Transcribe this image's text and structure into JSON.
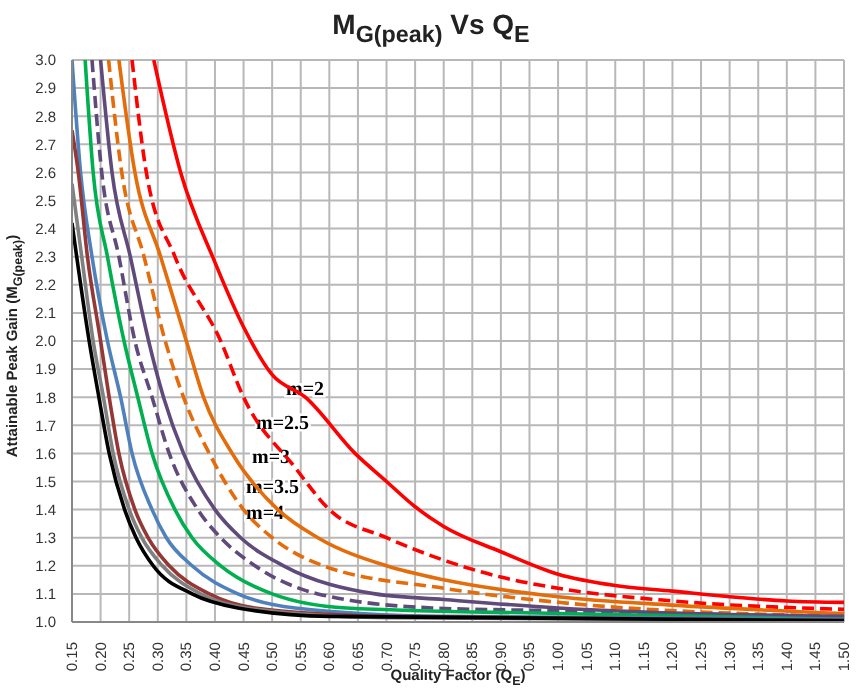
{
  "chart_data": {
    "type": "line",
    "title": "M$_{G(peak)}$ Vs Q$_{E}$",
    "xlabel": "Quality Factor (Q$_{E}$)",
    "ylabel": "Attainable Peak Gain (M$_{G(peak)}$)",
    "xlim": [
      0.15,
      1.5
    ],
    "ylim": [
      1.0,
      3.0
    ],
    "xticks": [
      {
        "value": 0.15,
        "label": "0.15"
      },
      {
        "value": 0.2,
        "label": "0.20"
      },
      {
        "value": 0.25,
        "label": "0.25"
      },
      {
        "value": 0.3,
        "label": "0.30"
      },
      {
        "value": 0.35,
        "label": "0.35"
      },
      {
        "value": 0.4,
        "label": "0.40"
      },
      {
        "value": 0.45,
        "label": "0.45"
      },
      {
        "value": 0.5,
        "label": "0.50"
      },
      {
        "value": 0.55,
        "label": "0.55"
      },
      {
        "value": 0.6,
        "label": "0.60"
      },
      {
        "value": 0.65,
        "label": "0.65"
      },
      {
        "value": 0.7,
        "label": "0.70"
      },
      {
        "value": 0.75,
        "label": "0.75"
      },
      {
        "value": 0.8,
        "label": "0.80"
      },
      {
        "value": 0.85,
        "label": "0.85"
      },
      {
        "value": 0.9,
        "label": "0.90"
      },
      {
        "value": 0.95,
        "label": "0.95"
      },
      {
        "value": 1.0,
        "label": "1.00"
      },
      {
        "value": 1.05,
        "label": "1.05"
      },
      {
        "value": 1.1,
        "label": "1.10"
      },
      {
        "value": 1.15,
        "label": "1.15"
      },
      {
        "value": 1.2,
        "label": "1.20"
      },
      {
        "value": 1.25,
        "label": "1.25"
      },
      {
        "value": 1.3,
        "label": "1.30"
      },
      {
        "value": 1.35,
        "label": "1.35"
      },
      {
        "value": 1.4,
        "label": "1.40"
      },
      {
        "value": 1.45,
        "label": "1.45"
      },
      {
        "value": 1.5,
        "label": "1.50"
      }
    ],
    "yticks": [
      {
        "value": 1.0,
        "label": "1.0"
      },
      1.1,
      1.2,
      1.3,
      1.4,
      1.5,
      1.6,
      1.7,
      1.8,
      1.9,
      {
        "value": 2.0,
        "label": "2.0"
      },
      2.1,
      2.2,
      2.3,
      2.4,
      2.5,
      2.6,
      2.7,
      2.8,
      2.9,
      {
        "value": 3.0,
        "label": "3.0"
      }
    ],
    "grid": true,
    "marker": "none",
    "series": [
      {
        "color": "#ff0000",
        "line_style": "solid",
        "x": [
          0.293,
          0.34,
          0.4,
          0.45,
          0.5,
          0.558,
          0.645,
          0.7,
          0.75,
          0.8,
          0.9,
          1.0,
          1.1,
          1.2,
          1.3,
          1.4,
          1.5
        ],
        "values": [
          3.0,
          2.6,
          2.28,
          2.05,
          1.88,
          1.8,
          1.6,
          1.5,
          1.41,
          1.34,
          1.25,
          1.17,
          1.13,
          1.11,
          1.09,
          1.075,
          1.07
        ]
      },
      {
        "color": "#ff0000",
        "line_style": "dashed",
        "x": [
          0.255,
          0.28,
          0.33,
          0.41,
          0.45,
          0.54,
          0.6,
          0.7,
          0.8,
          0.9,
          1.0,
          1.2,
          1.5
        ],
        "values": [
          3.0,
          2.6,
          2.3,
          2.0,
          1.8,
          1.55,
          1.4,
          1.3,
          1.22,
          1.16,
          1.12,
          1.075,
          1.045
        ]
      },
      {
        "color": "#e46c0a",
        "line_style": "solid",
        "x": [
          0.232,
          0.26,
          0.305,
          0.35,
          0.38,
          0.43,
          0.51,
          0.58,
          0.7,
          0.8,
          1.0,
          1.2,
          1.5
        ],
        "values": [
          3.0,
          2.6,
          2.3,
          2.0,
          1.8,
          1.6,
          1.4,
          1.3,
          1.2,
          1.15,
          1.09,
          1.06,
          1.03
        ]
      },
      {
        "color": "#e46c0a",
        "line_style": "dashed",
        "x": [
          0.214,
          0.237,
          0.276,
          0.313,
          0.345,
          0.39,
          0.45,
          0.5,
          0.59,
          0.8,
          1.0,
          1.5
        ],
        "values": [
          3.0,
          2.6,
          2.3,
          2.0,
          1.8,
          1.6,
          1.4,
          1.3,
          1.2,
          1.12,
          1.07,
          1.02
        ]
      },
      {
        "color": "#604a7b",
        "line_style": "solid",
        "x": [
          0.2,
          0.22,
          0.252,
          0.284,
          0.31,
          0.345,
          0.4,
          0.445,
          0.52,
          0.68,
          0.8,
          1.0,
          1.5
        ],
        "values": [
          3.0,
          2.6,
          2.3,
          2.0,
          1.8,
          1.6,
          1.4,
          1.3,
          1.2,
          1.1,
          1.08,
          1.05,
          1.02
        ]
      },
      {
        "color": "#604a7b",
        "line_style": "dashed",
        "x": [
          0.185,
          0.202,
          0.232,
          0.26,
          0.29,
          0.32,
          0.37,
          0.41,
          0.47,
          0.58,
          0.78,
          1.0,
          1.5
        ],
        "values": [
          3.0,
          2.6,
          2.3,
          2.0,
          1.8,
          1.6,
          1.4,
          1.3,
          1.2,
          1.1,
          1.05,
          1.04,
          1.015
        ]
      },
      {
        "color": "#00b050",
        "line_style": "solid",
        "x": [
          0.173,
          0.187,
          0.212,
          0.241,
          0.265,
          0.29,
          0.33,
          0.36,
          0.41,
          0.5,
          0.63,
          1.0,
          1.5
        ],
        "values": [
          3.0,
          2.6,
          2.3,
          2.0,
          1.8,
          1.6,
          1.4,
          1.3,
          1.2,
          1.1,
          1.05,
          1.03,
          1.01
        ]
      },
      {
        "color": "#4f81bd",
        "line_style": "solid",
        "x": [
          0.15,
          0.165,
          0.185,
          0.212,
          0.235,
          0.255,
          0.29,
          0.315,
          0.36,
          0.44,
          0.54,
          0.8,
          1.5
        ],
        "values": [
          3.0,
          2.6,
          2.3,
          2.0,
          1.8,
          1.6,
          1.4,
          1.3,
          1.2,
          1.1,
          1.05,
          1.02,
          1.01
        ]
      },
      {
        "color": "#953735",
        "line_style": "solid",
        "x": [
          0.15,
          0.161,
          0.177,
          0.2,
          0.215,
          0.232,
          0.26,
          0.283,
          0.32,
          0.39,
          0.47,
          0.7,
          1.5
        ],
        "values": [
          2.75,
          2.6,
          2.3,
          2.0,
          1.8,
          1.6,
          1.4,
          1.3,
          1.2,
          1.1,
          1.05,
          1.02,
          1.005
        ]
      },
      {
        "color": "#808080",
        "line_style": "solid",
        "x": [
          0.15,
          0.167,
          0.187,
          0.205,
          0.222,
          0.25,
          0.272,
          0.308,
          0.375,
          0.455,
          0.7,
          1.5
        ],
        "values": [
          2.56,
          2.3,
          2.0,
          1.8,
          1.6,
          1.4,
          1.3,
          1.2,
          1.1,
          1.05,
          1.015,
          1.005
        ]
      },
      {
        "color": "#000000",
        "line_style": "solid",
        "x": [
          0.15,
          0.18,
          0.197,
          0.215,
          0.242,
          0.262,
          0.292,
          0.36,
          0.44,
          0.6,
          1.5
        ],
        "values": [
          2.42,
          2.0,
          1.8,
          1.6,
          1.4,
          1.3,
          1.2,
          1.1,
          1.05,
          1.02,
          1.005
        ]
      }
    ],
    "annotations": [
      "m=2",
      "m=2.5",
      "m=3",
      "m=3.5",
      "m=4"
    ]
  }
}
